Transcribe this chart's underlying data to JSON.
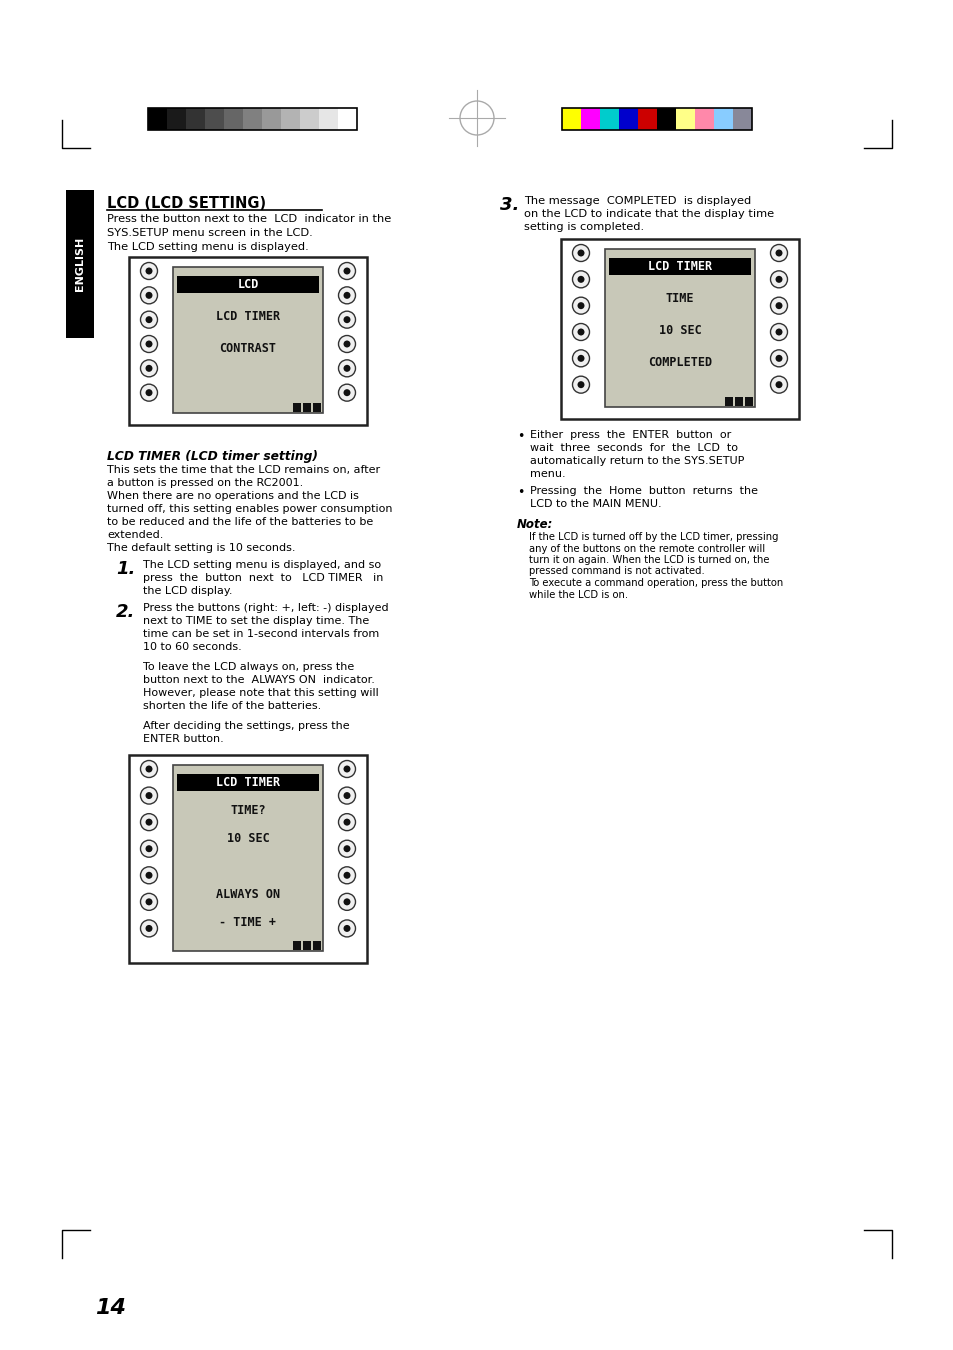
{
  "bg_color": "#ffffff",
  "page_number": "14",
  "title": "LCD (LCD SETTING)",
  "grayscale_colors": [
    "#000000",
    "#1a1a1a",
    "#333333",
    "#4d4d4d",
    "#666666",
    "#808080",
    "#999999",
    "#b3b3b3",
    "#cccccc",
    "#e6e6e6",
    "#ffffff"
  ],
  "color_bar_colors": [
    "#ffff00",
    "#ff00ff",
    "#00cccc",
    "#0000cc",
    "#cc0000",
    "#000000",
    "#ffff88",
    "#ff88aa",
    "#88ccff",
    "#888899"
  ],
  "english_tab": "ENGLISH",
  "intro_text": [
    "Press the button next to the  LCD  indicator in the",
    "SYS.SETUP menu screen in the LCD.",
    "The LCD setting menu is displayed."
  ],
  "lcd_display1_lines": [
    "LCD",
    "LCD TIMER",
    "CONTRAST"
  ],
  "section_title": "LCD TIMER (LCD timer setting)",
  "section_body": [
    "This sets the time that the LCD remains on, after",
    "a button is pressed on the RC2001.",
    "When there are no operations and the LCD is",
    "turned off, this setting enables power consumption",
    "to be reduced and the life of the batteries to be",
    "extended.",
    "The default setting is 10 seconds."
  ],
  "step1_lines": [
    "The LCD setting menu is displayed, and so",
    "press  the  button  next  to   LCD TIMER   in",
    "the LCD display."
  ],
  "step2_lines": [
    "Press the buttons (right: +, left: -) displayed",
    "next to TIME to set the display time. The",
    "time can be set in 1-second intervals from",
    "10 to 60 seconds.",
    "",
    "To leave the LCD always on, press the",
    "button next to the  ALWAYS ON  indicator.",
    "However, please note that this setting will",
    "shorten the life of the batteries.",
    "",
    "After deciding the settings, press the",
    "ENTER button."
  ],
  "lcd_display2_lines": [
    "LCD TIMER",
    "TIME?",
    "10 SEC",
    "",
    "ALWAYS ON",
    "- TIME +"
  ],
  "step3_lines": [
    "The message  COMPLETED  is displayed",
    "on the LCD to indicate that the display time",
    "setting is completed."
  ],
  "lcd_display3_lines": [
    "LCD TIMER",
    "TIME",
    "10 SEC",
    "COMPLETED"
  ],
  "bullet1_lines": [
    "Either  press  the  ENTER  button  or",
    "wait  three  seconds  for  the  LCD  to",
    "automatically return to the SYS.SETUP",
    "menu."
  ],
  "bullet2_lines": [
    "Pressing  the  Home  button  returns  the",
    "LCD to the MAIN MENU."
  ],
  "note_title": "Note:",
  "note_lines": [
    "If the LCD is turned off by the LCD timer, pressing",
    "any of the buttons on the remote controller will",
    "turn it on again. When the LCD is turned on, the",
    "pressed command is not activated.",
    "To execute a command operation, press the button",
    "while the LCD is on."
  ]
}
